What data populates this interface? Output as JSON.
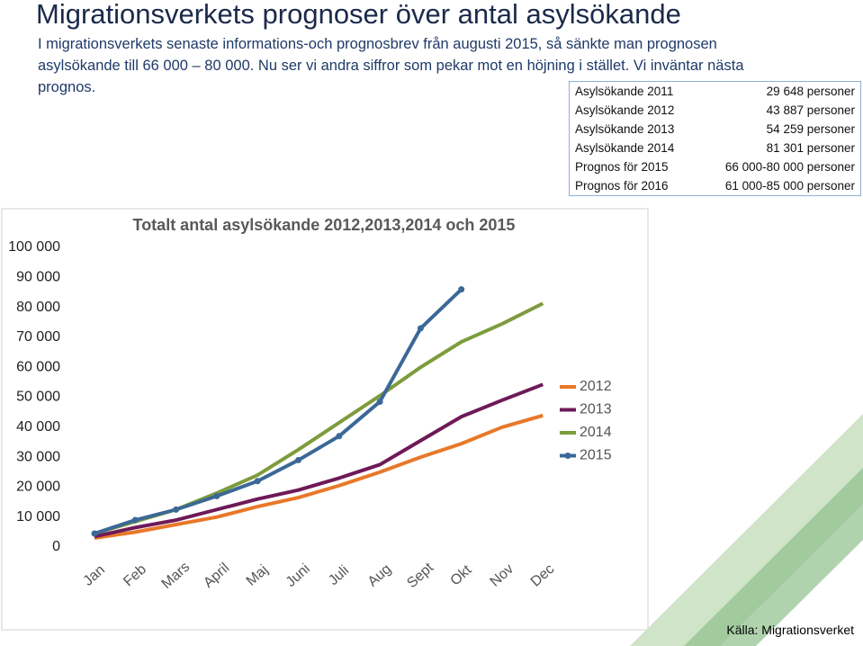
{
  "header": {
    "title": "Migrationsverkets prognoser över antal asylsökande",
    "text": "I migrationsverkets senaste informations-och prognosbrev från augusti 2015, så sänkte man prognosen asylsökande till 66 000 – 80 000. Nu ser vi andra siffror som pekar mot en höjning i stället. Vi inväntar nästa prognos."
  },
  "table": {
    "rows": [
      [
        "Asylsökande 2011",
        "29 648 personer"
      ],
      [
        "Asylsökande 2012",
        "43 887 personer"
      ],
      [
        "Asylsökande 2013",
        "54 259 personer"
      ],
      [
        "Asylsökande 2014",
        "81 301 personer"
      ],
      [
        "Prognos för 2015",
        "66 000-80 000 personer"
      ],
      [
        "Prognos för 2016",
        "61 000-85 000 personer"
      ]
    ]
  },
  "chart_data": {
    "type": "line",
    "title": "Totalt antal asylsökande 2012,2013,2014 och 2015",
    "categories": [
      "Jan",
      "Feb",
      "Mars",
      "April",
      "Maj",
      "Juni",
      "Juli",
      "Aug",
      "Sept",
      "Okt",
      "Nov",
      "Dec"
    ],
    "series": [
      {
        "name": "2012",
        "color": "#e8782a",
        "values": [
          3000,
          5000,
          7500,
          10000,
          13500,
          16500,
          20500,
          25000,
          30000,
          34500,
          40000,
          43887
        ]
      },
      {
        "name": "2013",
        "color": "#6e1a58",
        "values": [
          3500,
          6500,
          9000,
          12500,
          16000,
          19000,
          23000,
          27500,
          35500,
          43500,
          49000,
          54259
        ]
      },
      {
        "name": "2014",
        "color": "#7d9c3c",
        "values": [
          4500,
          8500,
          12500,
          18000,
          24000,
          32500,
          41500,
          50500,
          60000,
          68500,
          74500,
          81301
        ]
      },
      {
        "name": "2015",
        "color": "#3b6896",
        "markers": true,
        "values": [
          4500,
          9000,
          12500,
          17000,
          22000,
          29000,
          37000,
          48500,
          73000,
          86000,
          null,
          null
        ]
      }
    ],
    "ylim": [
      0,
      100000
    ],
    "yticks": [
      0,
      {
        "value": 10000,
        "label": "10 000"
      },
      {
        "value": 20000,
        "label": "20 000"
      },
      {
        "value": 30000,
        "label": "30 000"
      },
      {
        "value": 40000,
        "label": "40 000"
      },
      {
        "value": 50000,
        "label": "50 000"
      },
      {
        "value": 60000,
        "label": "60 000"
      },
      {
        "value": 70000,
        "label": "70 000"
      },
      {
        "value": 80000,
        "label": "80 000"
      },
      {
        "value": 90000,
        "label": "90 000"
      },
      {
        "value": 100000,
        "label": "100 000"
      }
    ],
    "legend": "right"
  },
  "source": "Källa: Migrationsverket"
}
